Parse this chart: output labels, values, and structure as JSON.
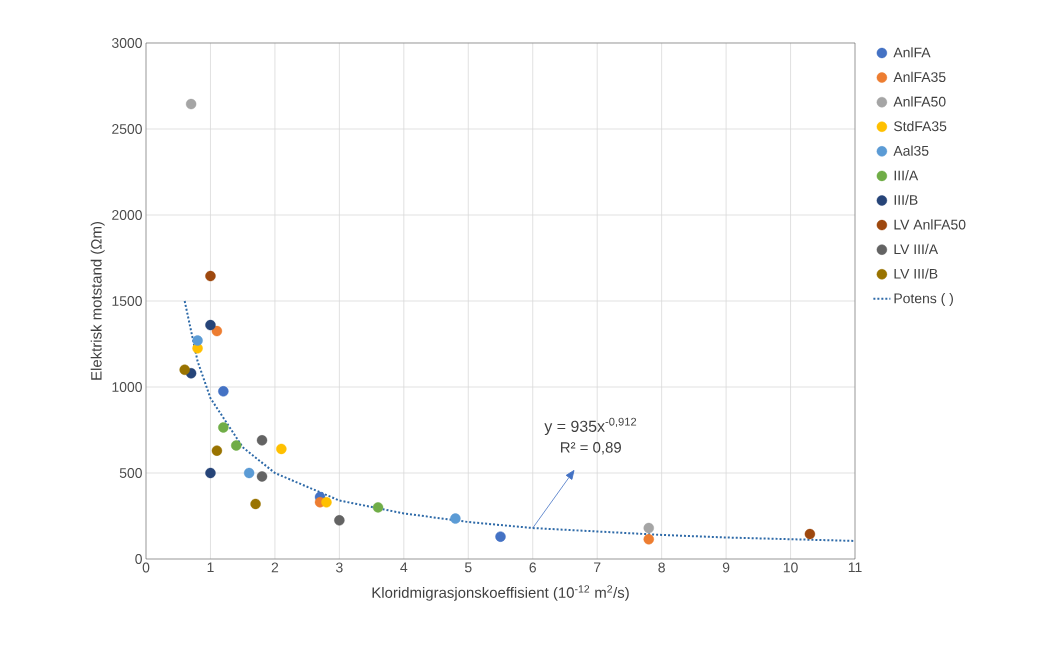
{
  "chart_data": {
    "type": "scatter",
    "xlabel": "Kloridmigrasjonskoeffisient  (10$^{-12}$ m$^{2}$/s)",
    "ylabel": "Elektrisk motstand (Ωm)",
    "xlim": [
      0,
      11
    ],
    "ylim": [
      0,
      3000
    ],
    "xticks": [
      0,
      1,
      2,
      3,
      4,
      5,
      6,
      7,
      8,
      9,
      10,
      11
    ],
    "yticks": [
      0,
      500,
      1000,
      1500,
      2000,
      2500,
      3000
    ],
    "grid": true,
    "legend": "right",
    "marker": "circle",
    "annotations": [
      "y = 935x$^{-0,912}$",
      "R² = 0,89"
    ],
    "series": [
      {
        "name": "AnlFA",
        "color": "#4472c4",
        "x": [
          1.2,
          2.7,
          5.5
        ],
        "values": [
          975,
          360,
          130
        ]
      },
      {
        "name": "AnlFA35",
        "color": "#ed7d31",
        "x": [
          1.1,
          2.7,
          7.8
        ],
        "values": [
          1325,
          330,
          115
        ]
      },
      {
        "name": "AnlFA50",
        "color": "#a5a5a5",
        "x": [
          0.7,
          7.8
        ],
        "values": [
          2645,
          180
        ]
      },
      {
        "name": "StdFA35",
        "color": "#ffc000",
        "x": [
          0.8,
          2.1,
          2.8
        ],
        "values": [
          1225,
          640,
          330
        ]
      },
      {
        "name": "Aal35",
        "color": "#5b9bd5",
        "x": [
          0.8,
          1.6,
          4.8
        ],
        "values": [
          1270,
          500,
          235
        ]
      },
      {
        "name": "III/A",
        "color": "#70ad47",
        "x": [
          1.2,
          1.4,
          3.6
        ],
        "values": [
          765,
          660,
          300
        ]
      },
      {
        "name": "III/B",
        "color": "#264478",
        "x": [
          1.0,
          0.7,
          1.0
        ],
        "values": [
          1360,
          1080,
          500
        ]
      },
      {
        "name": "LV AnlFA50",
        "color": "#9e480e",
        "x": [
          1.0,
          10.3
        ],
        "values": [
          1645,
          145
        ]
      },
      {
        "name": "LV III/A",
        "color": "#636363",
        "x": [
          1.8,
          1.8,
          3.0
        ],
        "values": [
          690,
          480,
          225
        ]
      },
      {
        "name": "LV III/B",
        "color": "#997300",
        "x": [
          0.6,
          1.1,
          1.7
        ],
        "values": [
          1100,
          630,
          320
        ]
      },
      {
        "name": "Potens ( )",
        "type": "line",
        "line_style": "dotted",
        "marker": "none",
        "color": "#2e6aa8",
        "x": [
          0.6,
          0.8,
          1,
          1.5,
          2,
          3,
          4,
          5,
          6,
          7,
          8,
          9,
          10,
          11
        ],
        "values": [
          1500,
          1150,
          935,
          650,
          500,
          340,
          265,
          215,
          180,
          160,
          140,
          125,
          115,
          105
        ]
      }
    ]
  }
}
